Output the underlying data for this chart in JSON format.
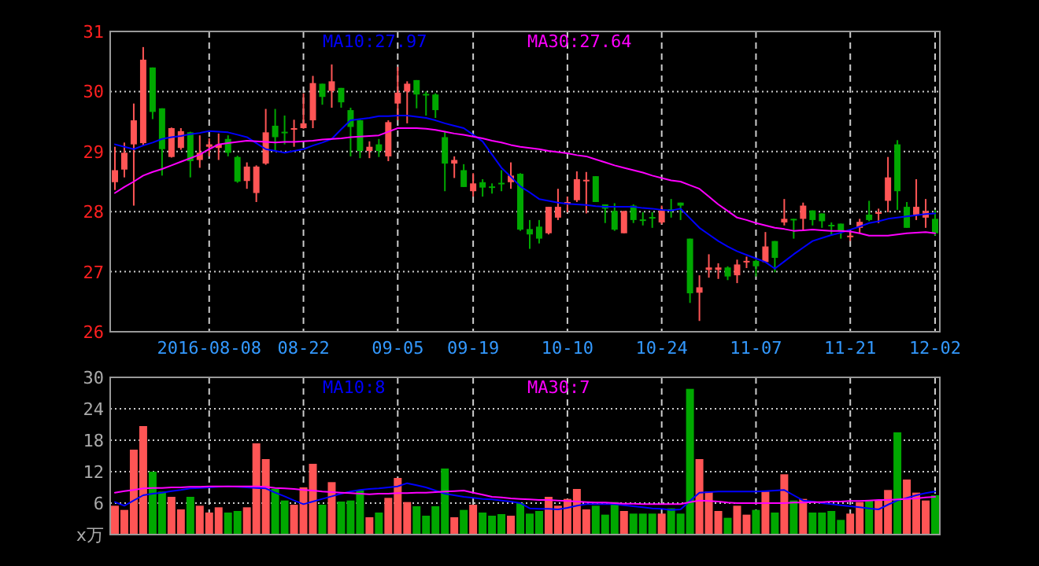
{
  "chart_data": [
    {
      "type": "candlestick",
      "categories": [
        null,
        null,
        null,
        null,
        null,
        null,
        null,
        null,
        null,
        null,
        "2016-08-08",
        null,
        null,
        null,
        null,
        null,
        null,
        null,
        null,
        null,
        "08-22",
        null,
        null,
        null,
        null,
        null,
        null,
        null,
        null,
        null,
        "09-05",
        null,
        null,
        null,
        null,
        null,
        null,
        null,
        "09-19",
        null,
        null,
        null,
        null,
        null,
        null,
        null,
        null,
        null,
        "10-10",
        null,
        null,
        null,
        null,
        null,
        null,
        null,
        null,
        null,
        "10-24",
        null,
        null,
        null,
        null,
        null,
        null,
        null,
        null,
        null,
        "11-07",
        null,
        null,
        null,
        null,
        null,
        null,
        null,
        null,
        null,
        "11-21",
        null,
        null,
        null,
        null,
        null,
        null,
        null,
        null,
        "12-02"
      ],
      "ohlc": [
        [
          28.49,
          29.08,
          28.36,
          28.69
        ],
        [
          28.7,
          29.15,
          28.57,
          28.98
        ],
        [
          29.12,
          29.8,
          28.1,
          29.52
        ],
        [
          29.14,
          30.74,
          29.1,
          30.53
        ],
        [
          30.4,
          30.4,
          29.54,
          29.66
        ],
        [
          29.72,
          29.72,
          28.6,
          29.04
        ],
        [
          28.91,
          29.4,
          28.9,
          29.39
        ],
        [
          29.06,
          29.39,
          29.03,
          29.34
        ],
        [
          29.32,
          29.33,
          28.57,
          28.84
        ],
        [
          28.86,
          29.27,
          28.73,
          28.98
        ],
        [
          29.08,
          29.22,
          28.92,
          29.12
        ],
        [
          29.06,
          29.3,
          28.86,
          29.12
        ],
        [
          29.21,
          29.27,
          28.92,
          28.98
        ],
        [
          28.91,
          28.93,
          28.48,
          28.5
        ],
        [
          28.51,
          28.82,
          28.38,
          28.75
        ],
        [
          28.31,
          28.77,
          28.16,
          28.75
        ],
        [
          28.8,
          29.71,
          28.78,
          29.32
        ],
        [
          29.43,
          29.71,
          29.01,
          29.24
        ],
        [
          29.33,
          29.6,
          29.12,
          29.32
        ],
        [
          29.37,
          29.53,
          29.08,
          29.39
        ],
        [
          29.39,
          29.97,
          29.38,
          29.47
        ],
        [
          29.52,
          30.26,
          29.39,
          30.14
        ],
        [
          30.13,
          30.13,
          29.78,
          29.91
        ],
        [
          30.01,
          30.45,
          29.73,
          30.17
        ],
        [
          30.06,
          30.06,
          29.73,
          29.82
        ],
        [
          29.69,
          29.73,
          28.92,
          29.41
        ],
        [
          29.52,
          29.53,
          28.89,
          29.01
        ],
        [
          29.01,
          29.17,
          28.89,
          29.08
        ],
        [
          29.12,
          29.21,
          28.91,
          29.01
        ],
        [
          28.92,
          29.52,
          28.84,
          29.49
        ],
        [
          29.8,
          30.41,
          29.52,
          29.98
        ],
        [
          30.0,
          30.17,
          29.47,
          30.13
        ],
        [
          30.19,
          30.19,
          29.72,
          29.95
        ],
        [
          29.96,
          30.0,
          29.6,
          29.94
        ],
        [
          29.95,
          29.97,
          29.56,
          29.69
        ],
        [
          29.24,
          29.34,
          28.34,
          28.8
        ],
        [
          28.8,
          28.92,
          28.56,
          28.86
        ],
        [
          28.69,
          28.79,
          28.41,
          28.41
        ],
        [
          28.34,
          28.64,
          28.25,
          28.47
        ],
        [
          28.49,
          28.54,
          28.25,
          28.4
        ],
        [
          28.42,
          28.47,
          28.3,
          28.41
        ],
        [
          28.48,
          28.69,
          28.34,
          28.47
        ],
        [
          28.49,
          28.82,
          28.38,
          28.6
        ],
        [
          28.63,
          28.64,
          27.68,
          27.7
        ],
        [
          27.71,
          27.86,
          27.38,
          27.62
        ],
        [
          27.75,
          27.86,
          27.47,
          27.55
        ],
        [
          27.64,
          28.08,
          27.62,
          28.08
        ],
        [
          27.9,
          28.38,
          27.86,
          28.08
        ],
        [
          28.12,
          28.25,
          27.99,
          28.16
        ],
        [
          28.19,
          28.67,
          28.16,
          28.54
        ],
        [
          28.51,
          28.66,
          27.97,
          28.53
        ],
        [
          28.59,
          28.59,
          28.16,
          28.16
        ],
        [
          28.12,
          28.12,
          27.81,
          28.05
        ],
        [
          28.01,
          28.14,
          27.68,
          27.7
        ],
        [
          27.64,
          28.01,
          27.64,
          28.01
        ],
        [
          28.1,
          28.12,
          27.81,
          27.86
        ],
        [
          27.87,
          27.99,
          27.77,
          27.86
        ],
        [
          27.91,
          27.99,
          27.73,
          27.9
        ],
        [
          27.82,
          28.1,
          27.79,
          28.02
        ],
        [
          28.04,
          28.21,
          27.9,
          28.03
        ],
        [
          28.15,
          28.15,
          27.86,
          28.1
        ],
        [
          27.55,
          27.55,
          26.48,
          26.64
        ],
        [
          26.65,
          26.94,
          26.18,
          26.74
        ],
        [
          27.03,
          27.29,
          26.9,
          27.07
        ],
        [
          27.03,
          27.14,
          26.88,
          27.07
        ],
        [
          27.07,
          27.09,
          26.86,
          26.92
        ],
        [
          26.94,
          27.2,
          26.81,
          27.12
        ],
        [
          27.16,
          27.25,
          27.06,
          27.18
        ],
        [
          27.18,
          27.2,
          26.92,
          27.09
        ],
        [
          27.16,
          27.66,
          27.16,
          27.42
        ],
        [
          27.51,
          27.51,
          26.99,
          27.23
        ],
        [
          27.82,
          28.21,
          27.77,
          27.88
        ],
        [
          27.88,
          27.88,
          27.55,
          27.87
        ],
        [
          27.88,
          28.15,
          27.68,
          28.1
        ],
        [
          28.02,
          28.02,
          27.77,
          27.86
        ],
        [
          27.97,
          27.97,
          27.73,
          27.84
        ],
        [
          27.78,
          27.82,
          27.6,
          27.77
        ],
        [
          27.8,
          27.8,
          27.55,
          27.68
        ],
        [
          27.59,
          27.68,
          27.51,
          27.6
        ],
        [
          27.73,
          27.88,
          27.64,
          27.83
        ],
        [
          27.95,
          28.18,
          27.84,
          27.86
        ],
        [
          27.97,
          28.05,
          27.81,
          27.99
        ],
        [
          28.18,
          28.91,
          27.99,
          28.57
        ],
        [
          29.12,
          29.19,
          28.03,
          28.34
        ],
        [
          28.08,
          28.16,
          27.73,
          27.73
        ],
        [
          27.95,
          28.54,
          27.86,
          28.08
        ],
        [
          27.9,
          28.21,
          27.73,
          28.01
        ],
        [
          27.88,
          28.03,
          27.6,
          27.64
        ]
      ],
      "colors": [
        "#ff5555",
        "#ff5555",
        "#ff5555",
        "#ff5555",
        "#00a800",
        "#00a800",
        "#ff5555",
        "#ff5555",
        "#00a800",
        "#ff5555",
        "#ff5555",
        "#ff5555",
        "#00a800",
        "#00a800",
        "#ff5555",
        "#ff5555",
        "#ff5555",
        "#00a800",
        "#00a800",
        "#ff5555",
        "#ff5555",
        "#ff5555",
        "#00a800",
        "#ff5555",
        "#00a800",
        "#00a800",
        "#00a800",
        "#ff5555",
        "#00a800",
        "#ff5555",
        "#ff5555",
        "#ff5555",
        "#00a800",
        "#00a800",
        "#00a800",
        "#00a800",
        "#ff5555",
        "#00a800",
        "#ff5555",
        "#00a800",
        "#00a800",
        "#00a800",
        "#ff5555",
        "#00a800",
        "#00a800",
        "#00a800",
        "#ff5555",
        "#ff5555",
        "#ff5555",
        "#ff5555",
        "#ff5555",
        "#00a800",
        "#00a800",
        "#00a800",
        "#ff5555",
        "#00a800",
        "#00a800",
        "#00a800",
        "#ff5555",
        "#00a800",
        "#00a800",
        "#00a800",
        "#ff5555",
        "#ff5555",
        "#ff5555",
        "#00a800",
        "#ff5555",
        "#ff5555",
        "#00a800",
        "#ff5555",
        "#00a800",
        "#ff5555",
        "#00a800",
        "#ff5555",
        "#00a800",
        "#00a800",
        "#00a800",
        "#00a800",
        "#ff5555",
        "#ff5555",
        "#00a800",
        "#ff5555",
        "#ff5555",
        "#00a800",
        "#00a800",
        "#ff5555",
        "#ff5555",
        "#00a800"
      ],
      "series": [
        {
          "name": "MA10:27.97",
          "type": "line",
          "color": "#0000ff",
          "values": [
            29.12,
            29.08,
            29.04,
            29.1,
            29.15,
            29.21,
            29.24,
            29.26,
            29.29,
            29.31,
            29.34,
            29.33,
            29.32,
            29.28,
            29.24,
            29.14,
            29.04,
            29.01,
            28.98,
            29.01,
            29.04,
            29.1,
            29.15,
            29.21,
            29.37,
            29.52,
            29.54,
            29.56,
            29.59,
            29.59,
            29.6,
            29.6,
            29.58,
            29.56,
            29.52,
            29.47,
            29.43,
            29.39,
            29.28,
            29.17,
            28.95,
            28.73,
            28.58,
            28.42,
            28.32,
            28.21,
            28.18,
            28.15,
            28.13,
            28.12,
            28.11,
            28.09,
            28.08,
            28.08,
            28.08,
            28.08,
            28.06,
            28.05,
            28.03,
            28.02,
            28.05,
            27.89,
            27.73,
            27.62,
            27.51,
            27.42,
            27.34,
            27.28,
            27.22,
            27.16,
            27.05,
            27.17,
            27.29,
            27.4,
            27.51,
            27.56,
            27.61,
            27.65,
            27.7,
            27.75,
            27.81,
            27.84,
            27.88,
            27.9,
            27.92,
            27.94,
            27.96,
            27.97
          ]
        },
        {
          "name": "MA30:27.64",
          "type": "line",
          "color": "#ff00ff",
          "values": [
            28.31,
            28.41,
            28.5,
            28.6,
            28.66,
            28.71,
            28.77,
            28.83,
            28.89,
            28.95,
            29.04,
            29.12,
            29.14,
            29.16,
            29.18,
            29.17,
            29.16,
            29.15,
            29.16,
            29.16,
            29.17,
            29.18,
            29.2,
            29.21,
            29.22,
            29.24,
            29.25,
            29.26,
            29.27,
            29.33,
            29.39,
            29.39,
            29.39,
            29.38,
            29.36,
            29.33,
            29.3,
            29.28,
            29.25,
            29.22,
            29.18,
            29.15,
            29.11,
            29.08,
            29.06,
            29.04,
            29.01,
            28.99,
            28.97,
            28.94,
            28.92,
            28.87,
            28.82,
            28.77,
            28.73,
            28.69,
            28.65,
            28.6,
            28.56,
            28.52,
            28.5,
            28.44,
            28.38,
            28.25,
            28.12,
            28.01,
            27.9,
            27.86,
            27.81,
            27.77,
            27.73,
            27.71,
            27.68,
            27.69,
            27.7,
            27.69,
            27.68,
            27.68,
            27.67,
            27.64,
            27.6,
            27.6,
            27.6,
            27.62,
            27.64,
            27.65,
            27.66,
            27.64
          ]
        }
      ],
      "ylim": [
        26,
        31
      ],
      "yticks": [
        26,
        27,
        28,
        29,
        30,
        31
      ],
      "grid": true,
      "legend": "top"
    },
    {
      "type": "bar",
      "categories": [
        null,
        null,
        null,
        null,
        null,
        null,
        null,
        null,
        null,
        null,
        null,
        null,
        null,
        null,
        null,
        null,
        null,
        null,
        null,
        null,
        null,
        null,
        null,
        null,
        null,
        null,
        null,
        null,
        null,
        null,
        null,
        null,
        null,
        null,
        null,
        null,
        null,
        null,
        null,
        null,
        null,
        null,
        null,
        null,
        null,
        null,
        null,
        null,
        null,
        null,
        null,
        null,
        null,
        null,
        null,
        null,
        null,
        null,
        null,
        null,
        null,
        null,
        null,
        null,
        null,
        null,
        null,
        null,
        null,
        null,
        null,
        null,
        null,
        null,
        null,
        null,
        null,
        null,
        null,
        null,
        null,
        null,
        null,
        null,
        null,
        null,
        null,
        null
      ],
      "values": [
        5.5,
        4.7,
        16.2,
        20.7,
        12.0,
        8.2,
        7.2,
        4.8,
        7.2,
        5.5,
        4.2,
        5.2,
        4.2,
        4.5,
        5.2,
        17.4,
        14.4,
        8.7,
        6.5,
        5.7,
        9.0,
        13.5,
        5.7,
        10.0,
        6.3,
        6.5,
        8.4,
        3.3,
        4.2,
        7.0,
        10.8,
        6.2,
        5.4,
        3.6,
        5.4,
        12.6,
        3.3,
        4.7,
        5.7,
        4.2,
        3.6,
        3.9,
        3.6,
        6.0,
        4.0,
        4.5,
        7.2,
        5.5,
        6.8,
        8.7,
        4.8,
        5.5,
        3.8,
        6.2,
        4.5,
        4.0,
        4.0,
        4.0,
        4.0,
        5.0,
        4.0,
        27.8,
        14.4,
        8.2,
        4.5,
        3.2,
        5.5,
        3.8,
        4.7,
        8.2,
        4.2,
        11.5,
        6.5,
        6.8,
        4.2,
        4.2,
        4.5,
        2.8,
        4.0,
        6.2,
        6.5,
        6.5,
        8.5,
        19.5,
        10.5,
        8.0,
        6.5,
        7.5
      ],
      "colors": [
        "#ff5555",
        "#ff5555",
        "#ff5555",
        "#ff5555",
        "#00a800",
        "#00a800",
        "#ff5555",
        "#ff5555",
        "#00a800",
        "#ff5555",
        "#ff5555",
        "#ff5555",
        "#00a800",
        "#00a800",
        "#ff5555",
        "#ff5555",
        "#ff5555",
        "#00a800",
        "#00a800",
        "#ff5555",
        "#ff5555",
        "#ff5555",
        "#00a800",
        "#ff5555",
        "#00a800",
        "#00a800",
        "#00a800",
        "#ff5555",
        "#00a800",
        "#ff5555",
        "#ff5555",
        "#ff5555",
        "#00a800",
        "#00a800",
        "#00a800",
        "#00a800",
        "#ff5555",
        "#00a800",
        "#ff5555",
        "#00a800",
        "#00a800",
        "#00a800",
        "#ff5555",
        "#00a800",
        "#00a800",
        "#00a800",
        "#ff5555",
        "#ff5555",
        "#ff5555",
        "#ff5555",
        "#ff5555",
        "#00a800",
        "#00a800",
        "#00a800",
        "#ff5555",
        "#00a800",
        "#00a800",
        "#00a800",
        "#ff5555",
        "#00a800",
        "#00a800",
        "#00a800",
        "#ff5555",
        "#ff5555",
        "#ff5555",
        "#00a800",
        "#ff5555",
        "#ff5555",
        "#00a800",
        "#ff5555",
        "#00a800",
        "#ff5555",
        "#00a800",
        "#ff5555",
        "#00a800",
        "#00a800",
        "#00a800",
        "#00a800",
        "#ff5555",
        "#ff5555",
        "#00a800",
        "#ff5555",
        "#ff5555",
        "#00a800",
        "#ff5555",
        "#ff5555",
        "#ff5555",
        "#00a800"
      ],
      "series": [
        {
          "name": "MA10:8",
          "type": "line",
          "color": "#0000ff",
          "values": [
            6.2,
            5.5,
            6.5,
            7.5,
            7.8,
            8.0,
            8.3,
            8.5,
            8.8,
            8.9,
            9.0,
            9.1,
            9.2,
            9.1,
            9.0,
            8.9,
            8.8,
            8.0,
            7.3,
            6.5,
            5.8,
            6.3,
            6.8,
            7.3,
            7.8,
            8.2,
            8.5,
            8.7,
            8.8,
            9.0,
            9.2,
            9.8,
            9.4,
            9.0,
            8.4,
            7.8,
            7.5,
            7.2,
            7.0,
            6.8,
            6.7,
            6.5,
            6.3,
            6.0,
            5.0,
            4.9,
            4.9,
            4.8,
            5.1,
            5.5,
            5.8,
            5.8,
            5.8,
            5.8,
            5.6,
            5.4,
            5.2,
            5.0,
            4.9,
            4.7,
            4.8,
            6.4,
            8.0,
            8.1,
            8.2,
            8.2,
            8.2,
            8.2,
            8.2,
            8.3,
            8.4,
            8.5,
            7.5,
            6.5,
            6.3,
            6.0,
            5.8,
            5.6,
            5.4,
            5.2,
            5.0,
            4.8,
            5.7,
            6.5,
            7.0,
            7.5,
            7.9,
            8.2
          ]
        },
        {
          "name": "MA30:7",
          "type": "line",
          "color": "#ff00ff",
          "values": [
            8.0,
            8.3,
            8.5,
            8.8,
            8.9,
            8.9,
            9.0,
            9.0,
            9.1,
            9.1,
            9.2,
            9.2,
            9.2,
            9.2,
            9.2,
            9.2,
            9.1,
            8.9,
            8.8,
            8.7,
            8.5,
            8.4,
            8.2,
            8.1,
            8.0,
            7.9,
            7.8,
            7.7,
            7.8,
            7.8,
            7.9,
            7.9,
            8.0,
            8.0,
            8.1,
            8.2,
            8.3,
            8.4,
            8.0,
            7.6,
            7.2,
            7.1,
            6.9,
            6.8,
            6.7,
            6.6,
            6.6,
            6.5,
            6.4,
            6.3,
            6.2,
            6.1,
            6.1,
            6.0,
            5.9,
            5.9,
            5.8,
            5.8,
            5.8,
            5.8,
            5.8,
            6.2,
            6.5,
            6.4,
            6.3,
            6.1,
            6.0,
            6.0,
            6.0,
            6.0,
            6.0,
            6.0,
            6.1,
            6.1,
            6.2,
            6.2,
            6.3,
            6.3,
            6.4,
            6.4,
            6.5,
            6.6,
            6.6,
            6.7,
            6.8,
            6.9,
            7.1,
            7.2
          ]
        }
      ],
      "ylim": [
        0,
        30
      ],
      "yticks": [
        {
          "value": 0,
          "label": "x万"
        },
        6,
        12,
        18,
        24,
        30
      ],
      "tick_labels": "y",
      "grid": true,
      "legend": "top"
    }
  ]
}
